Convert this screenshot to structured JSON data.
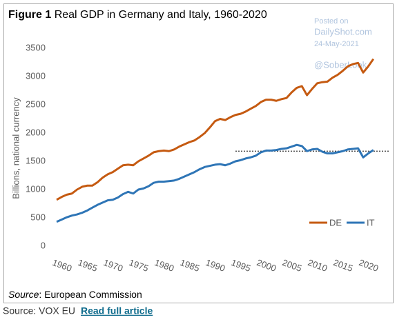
{
  "chart_data": {
    "type": "line",
    "title_prefix": "Figure 1",
    "title": "Real GDP in Germany and Italy, 1960-2020",
    "ylabel": "Billions, national currency",
    "watermark": [
      "Posted on",
      "DailyShot.com",
      "24-May-2021",
      "@SoberLook"
    ],
    "x": [
      1960,
      1961,
      1962,
      1963,
      1964,
      1965,
      1966,
      1967,
      1968,
      1969,
      1970,
      1971,
      1972,
      1973,
      1974,
      1975,
      1976,
      1977,
      1978,
      1979,
      1980,
      1981,
      1982,
      1983,
      1984,
      1985,
      1986,
      1987,
      1988,
      1989,
      1990,
      1991,
      1992,
      1993,
      1994,
      1995,
      1996,
      1997,
      1998,
      1999,
      2000,
      2001,
      2002,
      2003,
      2004,
      2005,
      2006,
      2007,
      2008,
      2009,
      2010,
      2011,
      2012,
      2013,
      2014,
      2015,
      2016,
      2017,
      2018,
      2019,
      2020,
      2021,
      2022
    ],
    "series": [
      {
        "name": "DE",
        "color": "#c55a11",
        "values": [
          820,
          870,
          910,
          930,
          1000,
          1050,
          1070,
          1070,
          1130,
          1210,
          1270,
          1310,
          1370,
          1430,
          1440,
          1430,
          1500,
          1550,
          1600,
          1660,
          1680,
          1690,
          1680,
          1710,
          1760,
          1800,
          1840,
          1870,
          1930,
          2000,
          2100,
          2210,
          2250,
          2230,
          2280,
          2320,
          2340,
          2380,
          2430,
          2480,
          2550,
          2590,
          2590,
          2570,
          2600,
          2620,
          2720,
          2800,
          2830,
          2670,
          2780,
          2880,
          2900,
          2910,
          2980,
          3030,
          3100,
          3180,
          3220,
          3240,
          3070,
          3180,
          3310
        ]
      },
      {
        "name": "IT",
        "color": "#2e75b6",
        "values": [
          430,
          470,
          510,
          540,
          560,
          590,
          630,
          680,
          730,
          770,
          810,
          820,
          860,
          920,
          960,
          930,
          1000,
          1020,
          1060,
          1120,
          1140,
          1140,
          1150,
          1160,
          1190,
          1230,
          1270,
          1310,
          1360,
          1400,
          1420,
          1440,
          1450,
          1430,
          1460,
          1500,
          1520,
          1550,
          1570,
          1600,
          1660,
          1690,
          1690,
          1700,
          1720,
          1730,
          1760,
          1790,
          1770,
          1680,
          1710,
          1720,
          1670,
          1640,
          1640,
          1660,
          1680,
          1710,
          1720,
          1730,
          1570,
          1640,
          1700
        ]
      }
    ],
    "reference_line": {
      "value": 1680,
      "x": [
        1995,
        2025
      ]
    },
    "xlim": [
      1957,
      2025
    ],
    "xticks": [
      1960,
      1965,
      1970,
      1975,
      1980,
      1985,
      1990,
      1995,
      2000,
      2005,
      2010,
      2015,
      2020
    ],
    "ylim": [
      0,
      3500
    ],
    "yticks": [
      0,
      500,
      1000,
      1500,
      2000,
      2500,
      3000,
      3500
    ],
    "grid": false,
    "legend": "lower right",
    "source_label": "Source",
    "source_text": ": European Commission"
  },
  "footer": {
    "source": "Source: VOX EU",
    "link": "Read full article"
  }
}
